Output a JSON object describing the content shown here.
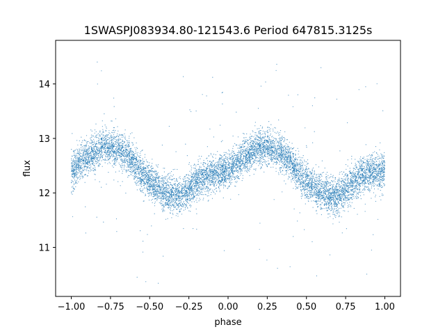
{
  "chart_data": {
    "type": "scatter",
    "title": "1SWASPJ083934.80-121543.6 Period 647815.3125s",
    "xlabel": "phase",
    "ylabel": "flux",
    "xlim": [
      -1.1,
      1.1
    ],
    "ylim": [
      10.1,
      14.8
    ],
    "x_ticks": [
      -1.0,
      -0.75,
      -0.5,
      -0.25,
      0.0,
      0.25,
      0.5,
      0.75,
      1.0
    ],
    "x_tick_labels": [
      "−1.00",
      "−0.75",
      "−0.50",
      "−0.25",
      "0.00",
      "0.25",
      "0.50",
      "0.75",
      "1.00"
    ],
    "y_ticks": [
      11,
      12,
      13,
      14
    ],
    "y_tick_labels": [
      "11",
      "12",
      "13",
      "14"
    ],
    "grid": false,
    "legend": "none",
    "marker_color": "#1f77b4",
    "series": [
      {
        "x": [
          -1.0,
          -0.95,
          -0.9,
          -0.85,
          -0.8,
          -0.75,
          -0.7,
          -0.65,
          -0.6,
          -0.55,
          -0.5,
          -0.45,
          -0.4,
          -0.35,
          -0.3,
          -0.25,
          -0.2,
          -0.15,
          -0.1,
          -0.05,
          0.0,
          0.05,
          0.1,
          0.15,
          0.2,
          0.25,
          0.3,
          0.35,
          0.4,
          0.45,
          0.5,
          0.55,
          0.6,
          0.65,
          0.7,
          0.75,
          0.8,
          0.85,
          0.9,
          0.95,
          1.0
        ],
        "y": [
          12.4,
          12.55,
          12.65,
          12.75,
          12.85,
          12.85,
          12.8,
          12.7,
          12.55,
          12.35,
          12.2,
          12.1,
          12.0,
          11.95,
          11.95,
          12.05,
          12.2,
          12.3,
          12.35,
          12.4,
          12.4,
          12.55,
          12.65,
          12.75,
          12.85,
          12.85,
          12.8,
          12.7,
          12.55,
          12.35,
          12.2,
          12.1,
          12.0,
          11.95,
          11.95,
          12.05,
          12.2,
          12.3,
          12.35,
          12.4,
          12.4
        ],
        "spread": 0.32
      }
    ]
  }
}
